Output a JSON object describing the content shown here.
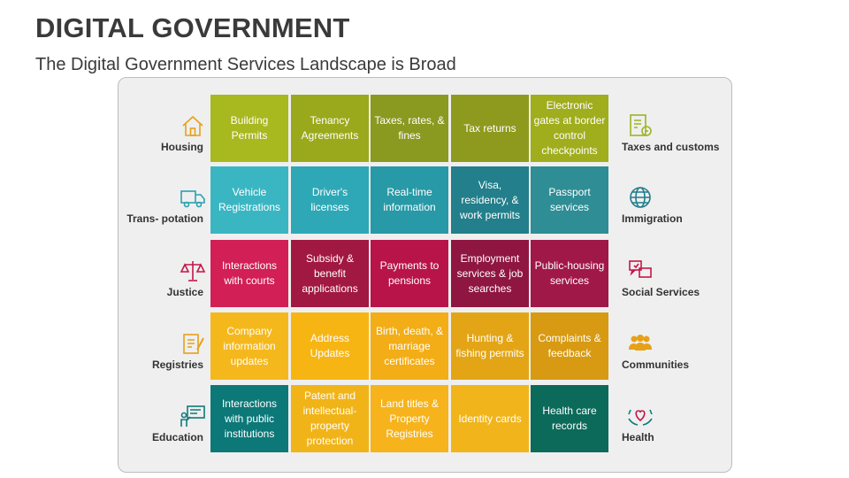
{
  "header": {
    "title": "DIGITAL GOVERNMENT",
    "subtitle": "The Digital Government Services Landscape is Broad"
  },
  "rows": [
    {
      "left": {
        "label": "Housing",
        "icon": "house-icon"
      },
      "right": {
        "label": "Taxes and customs",
        "icon": "tax-document-icon"
      },
      "color": "#9eb324",
      "tiles": [
        "Building Permits",
        "Tenancy Agreements",
        "Taxes, rates, & fines",
        "Tax returns",
        "Electronic gates at border control checkpoints"
      ]
    },
    {
      "left": {
        "label": "Trans- potation",
        "icon": "truck-icon"
      },
      "right": {
        "label": "Immigration",
        "icon": "globe-icon"
      },
      "color": "#26a4b3",
      "tiles": [
        "Vehicle Registrations",
        "Driver's licenses",
        "Real-time information",
        "Visa, residency, & work permits",
        "Passport services"
      ]
    },
    {
      "left": {
        "label": "Justice",
        "icon": "scales-icon"
      },
      "right": {
        "label": "Social Services",
        "icon": "social-chat-icon"
      },
      "color": "#c3174a",
      "tiles": [
        "Interactions with courts",
        "Subsidy & benefit applications",
        "Payments to pensions",
        "Employment services & job searches",
        "Public-housing services"
      ]
    },
    {
      "left": {
        "label": "Registries",
        "icon": "clipboard-icon"
      },
      "right": {
        "label": "Communities",
        "icon": "people-group-icon"
      },
      "color": "#f4b019",
      "tiles": [
        "Company information updates",
        "Address Updates",
        "Birth, death, & marriage certificates",
        "Hunting & fishing permits",
        "Complaints & feedback"
      ]
    },
    {
      "left": {
        "label": "Education",
        "icon": "teacher-board-icon"
      },
      "right": {
        "label": "Health",
        "icon": "health-hands-icon"
      },
      "color": "#0f7b7b",
      "tiles": [
        "Interactions with public institutions",
        "Patent and intellectual-property protection",
        "Land titles & Property Registries",
        "Identity cards",
        "Health care records"
      ]
    }
  ],
  "tile_colors": [
    [
      "#a8b81f",
      "#9aa91c",
      "#8a9920",
      "#8e9a1e",
      "#a0ad1d"
    ],
    [
      "#3ab6c3",
      "#2ea8b6",
      "#2899a6",
      "#227f8b",
      "#2f8d95"
    ],
    [
      "#d21f55",
      "#a11842",
      "#b8144a",
      "#8f1640",
      "#a01848"
    ],
    [
      "#f5b81c",
      "#f7b514",
      "#f2ad17",
      "#e3a516",
      "#d79a12"
    ],
    [
      "#0c7878",
      "#f1b418",
      "#f6b31c",
      "#f1b51b",
      "#0c6a5a"
    ]
  ]
}
